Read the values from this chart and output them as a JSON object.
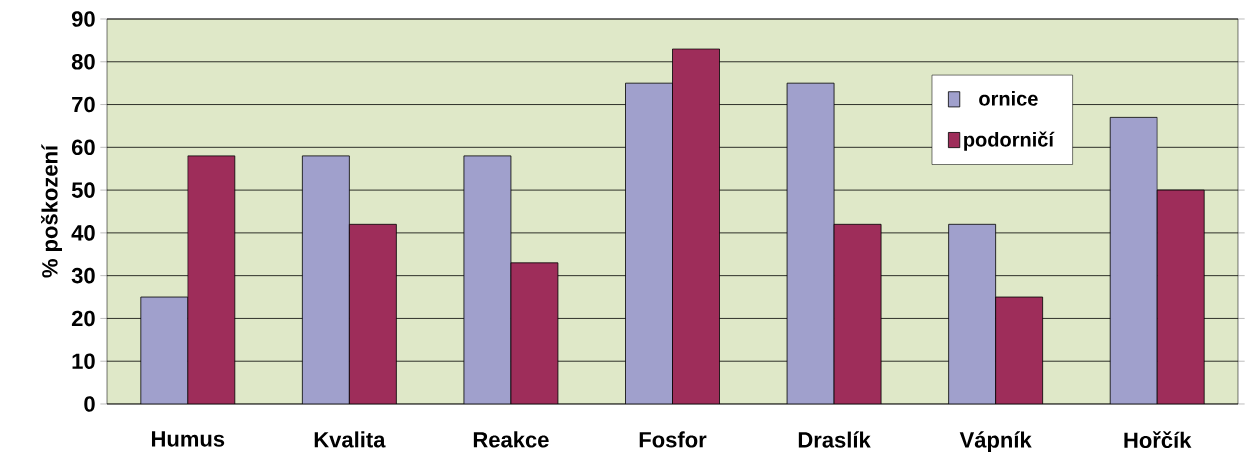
{
  "chart_data": {
    "type": "bar",
    "ylabel": "% poškození",
    "categories": [
      "Humus",
      "Kvalita",
      "Reakce",
      "Fosfor",
      "Draslík",
      "Vápník",
      "Hořčík"
    ],
    "series": [
      {
        "name": "ornice",
        "color": "#a0a0cc",
        "values": [
          25,
          58,
          58,
          75,
          75,
          42,
          67
        ]
      },
      {
        "name": "podorničí",
        "color": "#9e2d5a",
        "values": [
          58,
          42,
          33,
          83,
          42,
          25,
          50
        ]
      }
    ],
    "ylim": [
      0,
      90
    ],
    "yticks": [
      0,
      10,
      20,
      30,
      40,
      50,
      60,
      70,
      80,
      90
    ],
    "grid": "y",
    "legend": "top right"
  }
}
